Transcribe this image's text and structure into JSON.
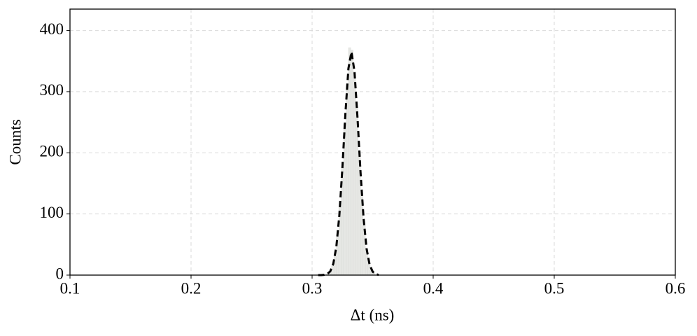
{
  "chart_data": {
    "type": "histogram",
    "x_label": "Δt (ns)",
    "y_label": "Counts",
    "bins": [
      0.312,
      0.314,
      0.316,
      0.318,
      0.32,
      0.322,
      0.324,
      0.326,
      0.328,
      0.33,
      0.332,
      0.334,
      0.336,
      0.338,
      0.34,
      0.342,
      0.344,
      0.346,
      0.348,
      0.35,
      0.352
    ],
    "counts": [
      2,
      6,
      15,
      33,
      63,
      111,
      175,
      247,
      312,
      372,
      368,
      333,
      275,
      203,
      135,
      81,
      43,
      21,
      9,
      4
    ],
    "color": "#e6e7e4",
    "fit": {
      "x": [
        0.305,
        0.3075,
        0.31,
        0.3125,
        0.315,
        0.3175,
        0.32,
        0.3225,
        0.325,
        0.3275,
        0.33,
        0.3325,
        0.335,
        0.3375,
        0.34,
        0.3425,
        0.345,
        0.3475,
        0.35,
        0.3525,
        0.355
      ],
      "values": [
        0,
        0,
        0.4,
        1.8,
        6.2,
        18.5,
        46,
        98,
        175,
        264,
        338,
        365,
        333,
        257,
        168,
        93,
        43,
        17,
        5.7,
        1.6,
        0.4
      ],
      "color": "#000000",
      "dashed": true
    },
    "xlim": [
      0.1,
      0.6
    ],
    "ylim": [
      0,
      435
    ],
    "xticks": [
      0.1,
      0.2,
      0.3,
      0.4,
      0.5,
      0.6
    ],
    "yticks": [
      0,
      100,
      200,
      300,
      400
    ],
    "grid": true
  }
}
